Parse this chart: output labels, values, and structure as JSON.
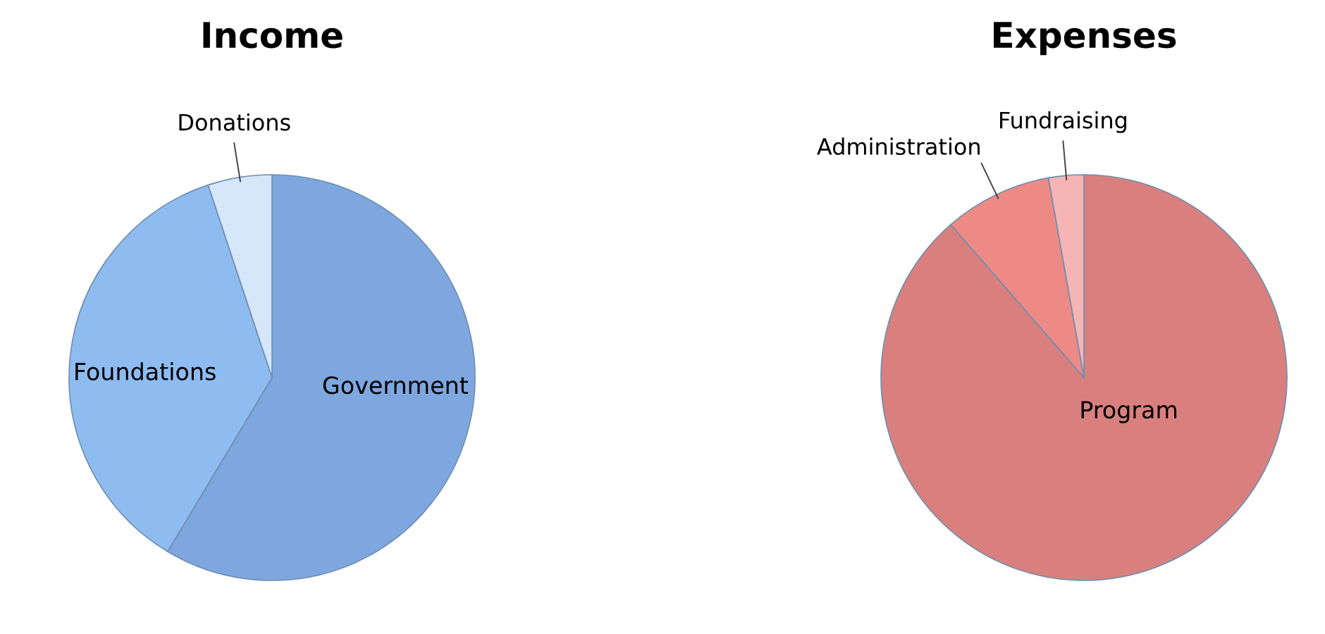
{
  "chart_data": [
    {
      "type": "pie",
      "title": "Income",
      "categories": [
        "Government",
        "Foundations",
        "Donations"
      ],
      "values": [
        58.6,
        36.3,
        5.1
      ],
      "colors": [
        "#7ea7df",
        "#8fbcf0",
        "#d6e6fb"
      ]
    },
    {
      "type": "pie",
      "title": "Expenses",
      "categories": [
        "Program",
        "Administration",
        "Fundraising"
      ],
      "values": [
        88.6,
        8.6,
        2.8
      ],
      "colors": [
        "#d9807e",
        "#ee8a85",
        "#f6b5b5"
      ]
    }
  ]
}
